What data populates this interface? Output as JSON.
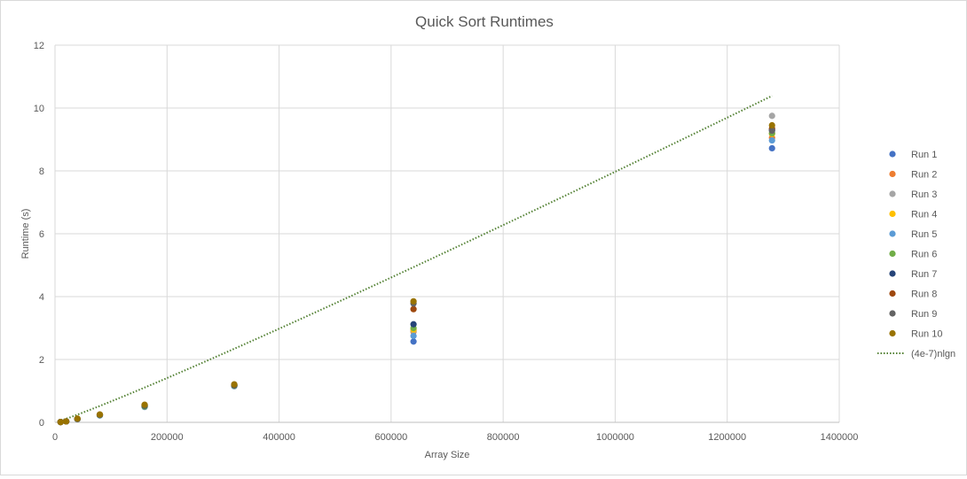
{
  "chart_data": {
    "type": "scatter",
    "title": "Quick Sort Runtimes",
    "xlabel": "Array Size",
    "ylabel": "Runtime (s)",
    "xlim": [
      0,
      1400000
    ],
    "ylim": [
      0,
      12
    ],
    "x_ticks": [
      "0",
      "200000",
      "400000",
      "600000",
      "800000",
      "1000000",
      "1200000",
      "1400000"
    ],
    "y_ticks": [
      "0",
      "2",
      "4",
      "6",
      "8",
      "10",
      "12"
    ],
    "grid": true,
    "legend_position": "right",
    "x": [
      10000,
      20000,
      40000,
      80000,
      160000,
      320000,
      640000,
      1280000
    ],
    "series": [
      {
        "name": "Run 1",
        "color": "#4472C4",
        "values": [
          0.01,
          0.03,
          0.1,
          0.22,
          0.49,
          1.15,
          2.57,
          8.72
        ]
      },
      {
        "name": "Run 2",
        "color": "#ED7D31",
        "values": [
          0.01,
          0.03,
          0.11,
          0.23,
          0.51,
          1.17,
          2.88,
          9.05
        ]
      },
      {
        "name": "Run 3",
        "color": "#A5A5A5",
        "values": [
          0.01,
          0.03,
          0.11,
          0.23,
          0.52,
          1.17,
          2.92,
          9.75
        ]
      },
      {
        "name": "Run 4",
        "color": "#FFC000",
        "values": [
          0.01,
          0.03,
          0.1,
          0.23,
          0.5,
          1.16,
          2.95,
          9.18
        ]
      },
      {
        "name": "Run 5",
        "color": "#5B9BD5",
        "values": [
          0.01,
          0.03,
          0.1,
          0.22,
          0.5,
          1.16,
          2.75,
          8.97
        ]
      },
      {
        "name": "Run 6",
        "color": "#70AD47",
        "values": [
          0.01,
          0.03,
          0.11,
          0.23,
          0.51,
          1.17,
          3.0,
          9.2
        ]
      },
      {
        "name": "Run 7",
        "color": "#264478",
        "values": [
          0.01,
          0.03,
          0.11,
          0.24,
          0.53,
          1.18,
          3.12,
          9.3
        ]
      },
      {
        "name": "Run 8",
        "color": "#9E480E",
        "values": [
          0.01,
          0.03,
          0.11,
          0.24,
          0.55,
          1.19,
          3.6,
          9.35
        ]
      },
      {
        "name": "Run 9",
        "color": "#636363",
        "values": [
          0.01,
          0.03,
          0.11,
          0.24,
          0.54,
          1.2,
          3.78,
          9.28
        ]
      },
      {
        "name": "Run 10",
        "color": "#997300",
        "values": [
          0.01,
          0.03,
          0.12,
          0.25,
          0.56,
          1.21,
          3.85,
          9.45
        ]
      }
    ],
    "trendline": {
      "name": "(4e-7)nlgn",
      "color": "#548235",
      "style": "dotted",
      "coefficient": 4e-07,
      "x_start": 10000,
      "x_end": 1280000
    }
  }
}
